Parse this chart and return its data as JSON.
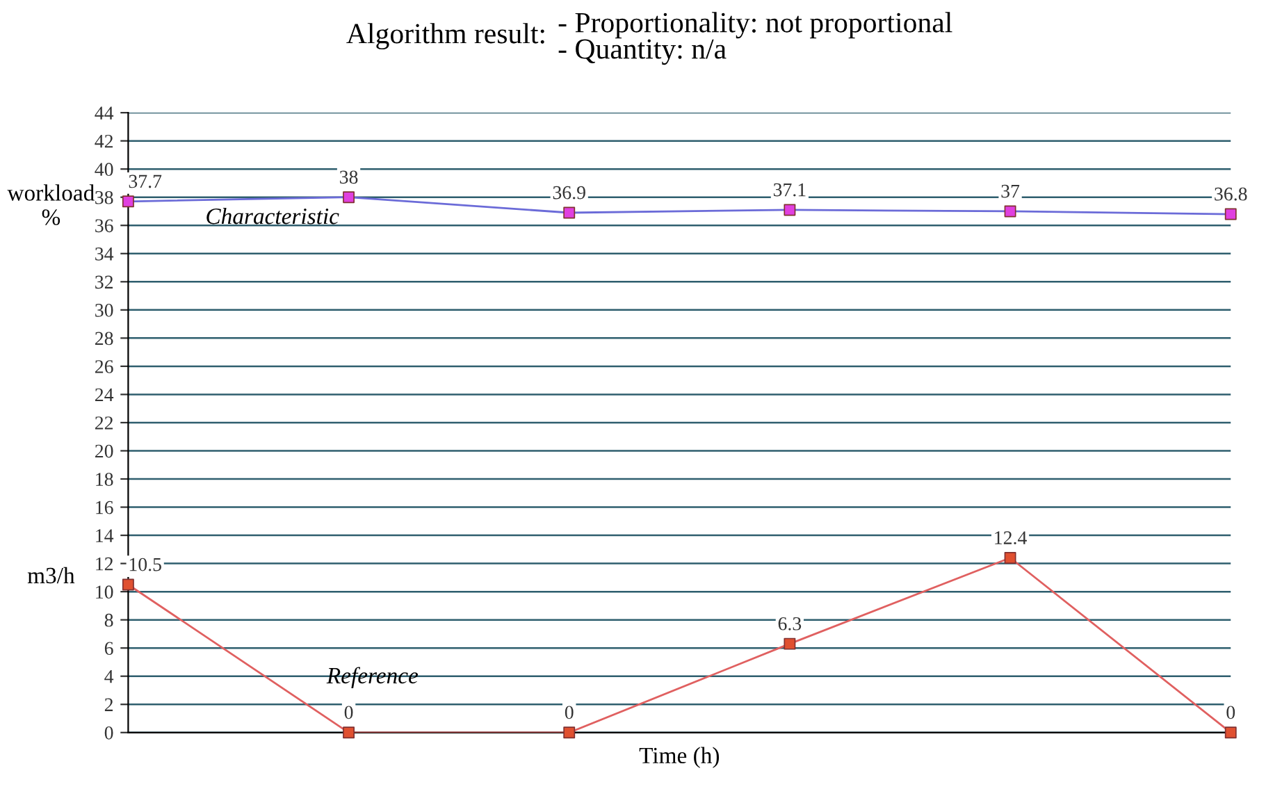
{
  "chart_data": {
    "type": "line",
    "title": "Algorithm result:",
    "subtitle": "- Proportionality: not proportional\n- Quantity: n/a",
    "xlabel": "Time (h)",
    "ylabel": "workload\n%",
    "annotations": [
      "m3/h"
    ],
    "categories": [
      null,
      null,
      null,
      null,
      null,
      null
    ],
    "series": [
      {
        "name": "Characteristic",
        "color": "#6b6bd8",
        "colors": [
          "#e040e0",
          "#e040e0",
          "#e040e0",
          "#e040e0",
          "#e040e0",
          "#e040e0"
        ],
        "values": [
          37.7,
          38,
          36.9,
          37.1,
          37,
          36.8
        ]
      },
      {
        "name": "Reference",
        "color": "#e06060",
        "colors": [
          "#e05030",
          "#e05030",
          "#e05030",
          "#e05030",
          "#e05030",
          "#e05030"
        ],
        "values": [
          10.5,
          0,
          0,
          6.3,
          12.4,
          0
        ]
      }
    ],
    "ylim": [
      0,
      44
    ],
    "yticks": [
      0,
      2,
      4,
      6,
      8,
      10,
      12,
      14,
      16,
      18,
      20,
      22,
      24,
      26,
      28,
      30,
      32,
      34,
      36,
      38,
      40,
      42,
      44
    ],
    "grid": "y",
    "marker": "square",
    "line_style": "solid",
    "data_labels": true
  }
}
